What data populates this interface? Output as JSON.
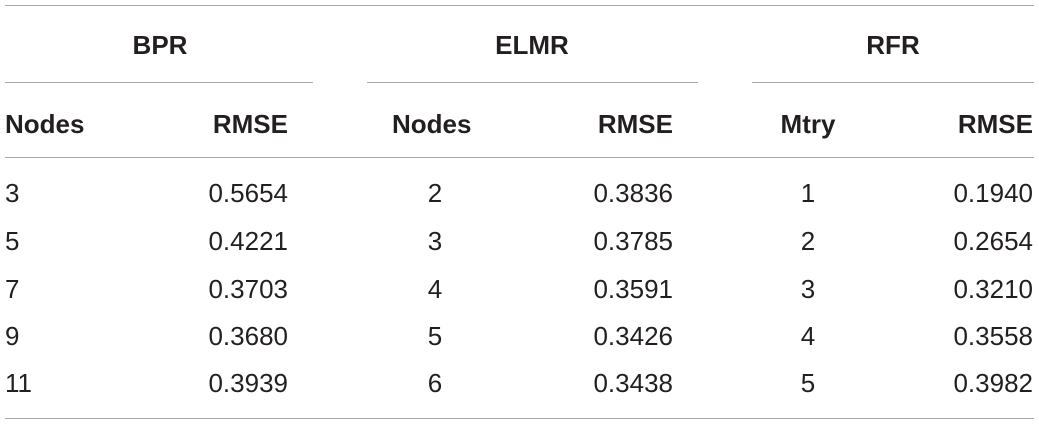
{
  "table": {
    "groups": [
      "BPR",
      "ELMR",
      "RFR"
    ],
    "columns": [
      "Nodes",
      "RMSE",
      "Nodes",
      "RMSE",
      "Mtry",
      "RMSE"
    ],
    "rows": [
      [
        "3",
        "0.5654",
        "2",
        "0.3836",
        "1",
        "0.1940"
      ],
      [
        "5",
        "0.4221",
        "3",
        "0.3785",
        "2",
        "0.2654"
      ],
      [
        "7",
        "0.3703",
        "4",
        "0.3591",
        "3",
        "0.3210"
      ],
      [
        "9",
        "0.3680",
        "5",
        "0.3426",
        "4",
        "0.3558"
      ],
      [
        "11",
        "0.3939",
        "6",
        "0.3438",
        "5",
        "0.3982"
      ]
    ]
  }
}
